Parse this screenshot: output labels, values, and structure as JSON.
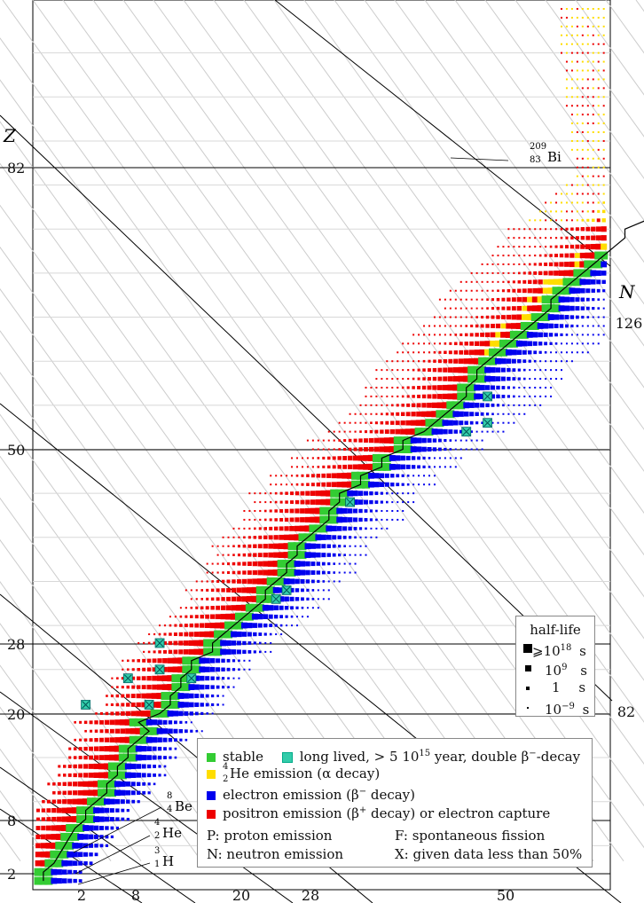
{
  "chart_data": {
    "type": "scatter",
    "xlabel": "N",
    "ylabel": "Z",
    "x_ticks": [
      "2",
      "8",
      "20",
      "28",
      "50",
      "82",
      "126"
    ],
    "y_ticks": [
      "2",
      "8",
      "20",
      "28",
      "50",
      "82"
    ],
    "xlim": [
      0,
      160
    ],
    "ylim": [
      0,
      120
    ],
    "grid": true,
    "annotations": [
      "209 83 Bi",
      "8 4 Be",
      "4 2 He",
      "3 1 H"
    ],
    "categories": [
      {
        "key": "stable",
        "label": "stable",
        "color": "#33cc33"
      },
      {
        "key": "long_lived",
        "label": "long lived, > 5 10^15 year, double β−-decay",
        "color": "#33ccaa"
      },
      {
        "key": "alpha",
        "label": "He emission (α decay)",
        "color": "#ffdd00"
      },
      {
        "key": "beta_minus",
        "label": "electron emission (β− decay)",
        "color": "#0000ee"
      },
      {
        "key": "beta_plus",
        "label": "positron emission (β+ decay) or electron capture",
        "color": "#ee0000"
      }
    ],
    "stable_band": [
      [
        2,
        1
      ],
      [
        2,
        2
      ],
      [
        4,
        3
      ],
      [
        5,
        4
      ],
      [
        6,
        5
      ],
      [
        7,
        6
      ],
      [
        8,
        7
      ],
      [
        10,
        8
      ],
      [
        10,
        9
      ],
      [
        12,
        10
      ],
      [
        14,
        11
      ],
      [
        14,
        12
      ],
      [
        16,
        13
      ],
      [
        16,
        14
      ],
      [
        18,
        15
      ],
      [
        18,
        16
      ],
      [
        20,
        17
      ],
      [
        22,
        18
      ],
      [
        20,
        19
      ],
      [
        24,
        20
      ],
      [
        26,
        21
      ],
      [
        26,
        22
      ],
      [
        28,
        23
      ],
      [
        28,
        24
      ],
      [
        30,
        25
      ],
      [
        30,
        26
      ],
      [
        34,
        27
      ],
      [
        34,
        28
      ],
      [
        36,
        29
      ],
      [
        38,
        30
      ],
      [
        40,
        31
      ],
      [
        42,
        32
      ],
      [
        44,
        33
      ],
      [
        44,
        34
      ],
      [
        46,
        35
      ],
      [
        48,
        36
      ],
      [
        48,
        37
      ],
      [
        50,
        38
      ],
      [
        50,
        39
      ],
      [
        52,
        40
      ],
      [
        54,
        41
      ],
      [
        56,
        42
      ],
      [
        56,
        43
      ],
      [
        58,
        44
      ],
      [
        58,
        45
      ],
      [
        62,
        46
      ],
      [
        62,
        47
      ],
      [
        66,
        48
      ],
      [
        66,
        49
      ],
      [
        70,
        50
      ],
      [
        70,
        51
      ],
      [
        74,
        52
      ],
      [
        76,
        53
      ],
      [
        78,
        54
      ],
      [
        80,
        55
      ],
      [
        82,
        56
      ],
      [
        82,
        57
      ],
      [
        84,
        58
      ],
      [
        84,
        59
      ],
      [
        86,
        60
      ],
      [
        88,
        61
      ],
      [
        90,
        62
      ],
      [
        92,
        63
      ],
      [
        94,
        64
      ],
      [
        96,
        65
      ],
      [
        98,
        66
      ],
      [
        98,
        67
      ],
      [
        100,
        68
      ],
      [
        102,
        69
      ],
      [
        104,
        70
      ],
      [
        106,
        71
      ],
      [
        108,
        72
      ],
      [
        110,
        73
      ],
      [
        112,
        74
      ],
      [
        112,
        75
      ],
      [
        116,
        76
      ],
      [
        118,
        77
      ],
      [
        120,
        78
      ],
      [
        122,
        79
      ],
      [
        124,
        80
      ],
      [
        126,
        81
      ],
      [
        126,
        82
      ],
      [
        126,
        83
      ]
    ],
    "long_lived_points": [
      [
        10,
        21
      ],
      [
        18,
        24
      ],
      [
        22,
        21
      ],
      [
        24,
        25
      ],
      [
        24,
        28
      ],
      [
        30,
        24
      ],
      [
        46,
        33
      ],
      [
        48,
        34
      ],
      [
        60,
        44
      ],
      [
        82,
        52
      ],
      [
        86,
        53
      ],
      [
        86,
        56
      ]
    ],
    "half_life_legend": {
      "title": "half-life",
      "entries": [
        "⩾10^18 s",
        "10^9 s",
        "1 s",
        "10^-9 s"
      ]
    }
  },
  "legend": {
    "stable": "stable",
    "long_lived": "long lived, > 5 10",
    "long_lived_sup": "15",
    "long_lived_rest": " year, double β",
    "long_lived_sup2": "−",
    "long_lived_tail": "-decay",
    "alpha_sup": "4",
    "alpha_sub": "2",
    "alpha_text": "He emission (α decay)",
    "beta_minus": "electron emission (β",
    "beta_minus_sup": "−",
    "beta_minus_tail": " decay)",
    "beta_plus": "positron emission (β",
    "beta_plus_sup": "+",
    "beta_plus_tail": " decay) or electron capture",
    "p_note": "P: proton emission",
    "n_note": "N: neutron emission",
    "f_note": "F: spontaneous fission",
    "x_note": "X: given data less than 50%"
  },
  "half_life": {
    "title": "half-life",
    "r1": "⩾10",
    "r1_sup": "18",
    "r1_unit": "s",
    "r2": "10",
    "r2_sup": "9",
    "r2_unit": "s",
    "r3": "1",
    "r3_unit": "s",
    "r4": "10",
    "r4_sup": "−9",
    "r4_unit": "s"
  },
  "labels": {
    "z_axis": "Z",
    "n_axis": "N",
    "bi_sup": "209",
    "bi_sub": "83",
    "bi": "Bi",
    "be_sup": "8",
    "be_sub": "4",
    "be": "Be",
    "he_sup": "4",
    "he_sub": "2",
    "he": "He",
    "h_sup": "3",
    "h_sub": "1",
    "h": "H"
  }
}
